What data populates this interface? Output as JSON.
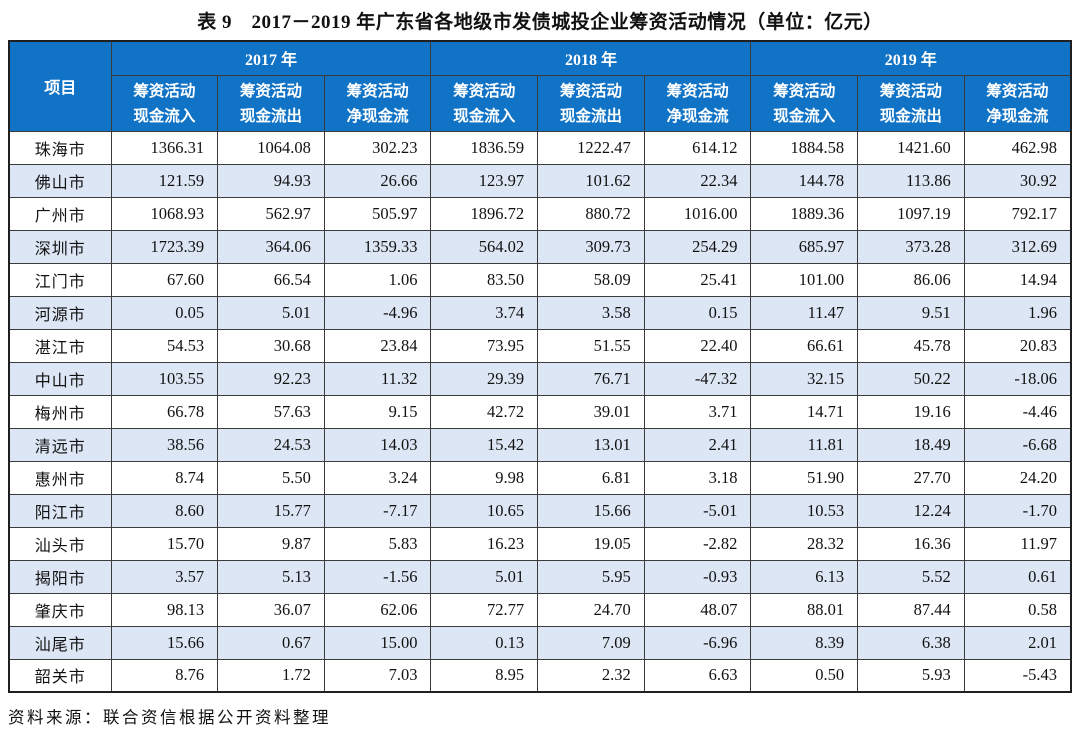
{
  "page": {
    "title": "表 9　2017－2019 年广东省各地级市发债城投企业筹资活动情况（单位：亿元）",
    "source_note": "资料来源：联合资信根据公开资料整理"
  },
  "table": {
    "corner_header": "项目",
    "year_groups": [
      "2017 年",
      "2018 年",
      "2019 年"
    ],
    "sub_headers": [
      {
        "line1": "筹资活动",
        "line2": "现金流入"
      },
      {
        "line1": "筹资活动",
        "line2": "现金流出"
      },
      {
        "line1": "筹资活动",
        "line2": "净现金流"
      }
    ],
    "rows": [
      {
        "city": "珠海市",
        "values": [
          "1366.31",
          "1064.08",
          "302.23",
          "1836.59",
          "1222.47",
          "614.12",
          "1884.58",
          "1421.60",
          "462.98"
        ]
      },
      {
        "city": "佛山市",
        "values": [
          "121.59",
          "94.93",
          "26.66",
          "123.97",
          "101.62",
          "22.34",
          "144.78",
          "113.86",
          "30.92"
        ]
      },
      {
        "city": "广州市",
        "values": [
          "1068.93",
          "562.97",
          "505.97",
          "1896.72",
          "880.72",
          "1016.00",
          "1889.36",
          "1097.19",
          "792.17"
        ]
      },
      {
        "city": "深圳市",
        "values": [
          "1723.39",
          "364.06",
          "1359.33",
          "564.02",
          "309.73",
          "254.29",
          "685.97",
          "373.28",
          "312.69"
        ]
      },
      {
        "city": "江门市",
        "values": [
          "67.60",
          "66.54",
          "1.06",
          "83.50",
          "58.09",
          "25.41",
          "101.00",
          "86.06",
          "14.94"
        ]
      },
      {
        "city": "河源市",
        "values": [
          "0.05",
          "5.01",
          "-4.96",
          "3.74",
          "3.58",
          "0.15",
          "11.47",
          "9.51",
          "1.96"
        ]
      },
      {
        "city": "湛江市",
        "values": [
          "54.53",
          "30.68",
          "23.84",
          "73.95",
          "51.55",
          "22.40",
          "66.61",
          "45.78",
          "20.83"
        ]
      },
      {
        "city": "中山市",
        "values": [
          "103.55",
          "92.23",
          "11.32",
          "29.39",
          "76.71",
          "-47.32",
          "32.15",
          "50.22",
          "-18.06"
        ]
      },
      {
        "city": "梅州市",
        "values": [
          "66.78",
          "57.63",
          "9.15",
          "42.72",
          "39.01",
          "3.71",
          "14.71",
          "19.16",
          "-4.46"
        ]
      },
      {
        "city": "清远市",
        "values": [
          "38.56",
          "24.53",
          "14.03",
          "15.42",
          "13.01",
          "2.41",
          "11.81",
          "18.49",
          "-6.68"
        ]
      },
      {
        "city": "惠州市",
        "values": [
          "8.74",
          "5.50",
          "3.24",
          "9.98",
          "6.81",
          "3.18",
          "51.90",
          "27.70",
          "24.20"
        ]
      },
      {
        "city": "阳江市",
        "values": [
          "8.60",
          "15.77",
          "-7.17",
          "10.65",
          "15.66",
          "-5.01",
          "10.53",
          "12.24",
          "-1.70"
        ]
      },
      {
        "city": "汕头市",
        "values": [
          "15.70",
          "9.87",
          "5.83",
          "16.23",
          "19.05",
          "-2.82",
          "28.32",
          "16.36",
          "11.97"
        ]
      },
      {
        "city": "揭阳市",
        "values": [
          "3.57",
          "5.13",
          "-1.56",
          "5.01",
          "5.95",
          "-0.93",
          "6.13",
          "5.52",
          "0.61"
        ]
      },
      {
        "city": "肇庆市",
        "values": [
          "98.13",
          "36.07",
          "62.06",
          "72.77",
          "24.70",
          "48.07",
          "88.01",
          "87.44",
          "0.58"
        ]
      },
      {
        "city": "汕尾市",
        "values": [
          "15.66",
          "0.67",
          "15.00",
          "0.13",
          "7.09",
          "-6.96",
          "8.39",
          "6.38",
          "2.01"
        ]
      },
      {
        "city": "韶关市",
        "values": [
          "8.76",
          "1.72",
          "7.03",
          "8.95",
          "2.32",
          "6.63",
          "0.50",
          "5.93",
          "-5.43"
        ]
      }
    ]
  },
  "colors": {
    "header_bg": "#1173C6",
    "header_text": "#FFFFFF",
    "stripe_bg": "#DCE6F4",
    "border": "#3B3B3B"
  }
}
